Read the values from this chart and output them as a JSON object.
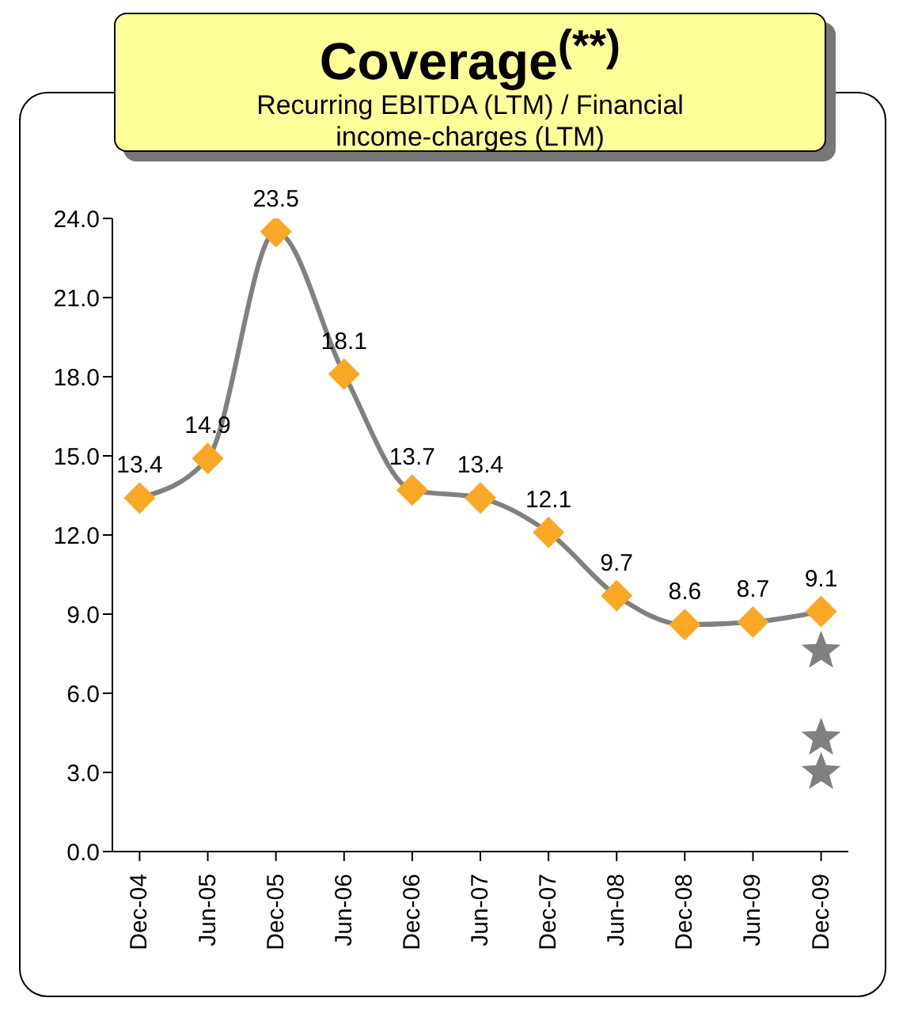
{
  "chart_data": {
    "type": "line",
    "title": "Coverage$^{(**)}$",
    "subtitle": "Recurring EBITDA (LTM) / Financial income-charges (LTM)",
    "categories": [
      "Dec-04",
      "Jun-05",
      "Dec-05",
      "Jun-06",
      "Dec-06",
      "Jun-07",
      "Dec-07",
      "Jun-08",
      "Dec-08",
      "Jun-09",
      "Dec-09"
    ],
    "series": [
      {
        "color": "#808080",
        "colors": [
          "#f9a825",
          "#f9a825",
          "#f9a825",
          "#f9a825",
          "#f9a825",
          "#f9a825",
          "#f9a825",
          "#f9a825",
          "#f9a825",
          "#f9a825",
          "#f9a825"
        ],
        "marker": "diamond",
        "values": [
          13.4,
          14.9,
          23.5,
          18.1,
          13.7,
          13.4,
          12.1,
          9.7,
          8.6,
          8.7,
          9.1
        ],
        "value_labels": [
          "13.4",
          "14.9",
          "23.5",
          "18.1",
          "13.7",
          "13.4",
          "12.1",
          "9.7",
          "8.6",
          "8.7",
          "9.1"
        ]
      },
      {
        "type": "scatter",
        "color": "#808080",
        "marker": "star",
        "x": [
          "Dec-09",
          "Dec-09",
          "Dec-09"
        ],
        "values": [
          7.6,
          4.3,
          3.0
        ]
      }
    ],
    "ylim": [
      0,
      24
    ],
    "yticks": [
      {
        "value": 0,
        "label": "0.0"
      },
      {
        "value": 3,
        "label": "3.0"
      },
      {
        "value": 6,
        "label": "6.0"
      },
      {
        "value": 9,
        "label": "9.0"
      },
      {
        "value": 12,
        "label": "12.0"
      },
      {
        "value": 15,
        "label": "15.0"
      },
      {
        "value": 18,
        "label": "18.0"
      },
      {
        "value": 21,
        "label": "21.0"
      },
      {
        "value": 24,
        "label": "24.0"
      }
    ],
    "grid": false
  }
}
